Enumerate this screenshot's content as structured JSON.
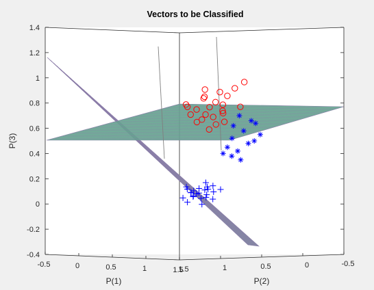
{
  "colors": {
    "figure_bg": "#f0f0f0",
    "axes_bg": "#ffffff",
    "axis_line": "#262626",
    "class_circle": "#ff0000",
    "class_plus": "#0000ff",
    "class_star": "#0000ff",
    "plane_fill": "#5fa98c",
    "plane_grid": "#8d7eaa",
    "stem": "#7f7f7f"
  },
  "chart_data": {
    "type": "scatter3d",
    "title": "Vectors to be Classified",
    "xlabel": "P(1)",
    "ylabel": "P(2)",
    "zlabel": "P(3)",
    "xlim": [
      -0.5,
      1.5
    ],
    "ylim": [
      -0.5,
      1.5
    ],
    "zlim": [
      -0.4,
      1.4
    ],
    "x_ticks": [
      "-0.5",
      "0",
      "0.5",
      "1",
      "1.5"
    ],
    "y_ticks": [
      "1.5",
      "1",
      "0.5",
      "0",
      "-0.5"
    ],
    "z_ticks": [
      "-0.4",
      "-0.2",
      "0",
      "0.2",
      "0.4",
      "0.6",
      "0.8",
      "1",
      "1.2",
      "1.4"
    ],
    "grid": false,
    "series": [
      {
        "marker": "o",
        "color": "#ff0000",
        "points": [
          [
            1.1,
            0.5,
            0.93
          ],
          [
            1.18,
            0.45,
            0.98
          ],
          [
            1.05,
            0.55,
            0.87
          ],
          [
            1.0,
            0.6,
            0.9
          ],
          [
            0.96,
            0.62,
            0.82
          ],
          [
            1.02,
            0.58,
            0.8
          ],
          [
            0.88,
            0.7,
            0.85
          ],
          [
            0.92,
            0.66,
            0.78
          ],
          [
            0.98,
            0.55,
            0.75
          ],
          [
            0.86,
            0.66,
            0.72
          ],
          [
            0.9,
            0.6,
            0.7
          ],
          [
            0.83,
            0.68,
            0.68
          ],
          [
            0.95,
            0.52,
            0.73
          ],
          [
            0.8,
            0.72,
            0.76
          ],
          [
            0.78,
            0.7,
            0.66
          ],
          [
            0.88,
            0.55,
            0.64
          ],
          [
            0.76,
            0.76,
            0.72
          ],
          [
            0.84,
            0.6,
            0.6
          ],
          [
            0.92,
            0.48,
            0.66
          ],
          [
            1.06,
            0.4,
            0.78
          ],
          [
            0.74,
            0.8,
            0.8
          ],
          [
            0.82,
            0.64,
            0.86
          ],
          [
            0.7,
            0.75,
            0.78
          ],
          [
            0.9,
            0.7,
            0.92
          ]
        ]
      },
      {
        "marker": "+",
        "color": "#0000ff",
        "points": [
          [
            0.1,
            0.12,
            0.07
          ],
          [
            0.15,
            0.05,
            0.1
          ],
          [
            0.05,
            0.15,
            0.04
          ],
          [
            0.2,
            0.1,
            0.12
          ],
          [
            0.12,
            0.2,
            0.09
          ],
          [
            0.02,
            0.08,
            0.06
          ],
          [
            0.18,
            0.16,
            0.03
          ],
          [
            0.08,
            0.02,
            0.15
          ],
          [
            0.22,
            0.04,
            0.08
          ],
          [
            0.0,
            0.18,
            0.1
          ],
          [
            0.14,
            0.22,
            0.05
          ],
          [
            0.24,
            0.14,
            0.06
          ],
          [
            0.06,
            0.24,
            0.12
          ],
          [
            0.16,
            0.0,
            0.02
          ],
          [
            0.26,
            0.08,
            0.13
          ],
          [
            0.1,
            0.26,
            0.0
          ],
          [
            -0.02,
            0.12,
            0.07
          ],
          [
            0.2,
            0.2,
            0.11
          ],
          [
            0.04,
            0.0,
            0.09
          ],
          [
            0.28,
            0.18,
            0.04
          ],
          [
            0.12,
            0.1,
            -0.02
          ],
          [
            0.3,
            0.02,
            0.1
          ],
          [
            -0.04,
            0.2,
            0.03
          ],
          [
            0.18,
            0.28,
            0.08
          ]
        ]
      },
      {
        "marker": "*",
        "color": "#0000ff",
        "points": [
          [
            0.8,
            0.2,
            0.7
          ],
          [
            0.88,
            0.12,
            0.66
          ],
          [
            0.76,
            0.24,
            0.62
          ],
          [
            0.92,
            0.1,
            0.64
          ],
          [
            0.84,
            0.18,
            0.58
          ],
          [
            0.72,
            0.28,
            0.45
          ],
          [
            0.8,
            0.22,
            0.42
          ],
          [
            0.86,
            0.14,
            0.48
          ],
          [
            0.76,
            0.26,
            0.38
          ],
          [
            0.9,
            0.1,
            0.5
          ],
          [
            0.68,
            0.3,
            0.4
          ],
          [
            0.82,
            0.2,
            0.35
          ],
          [
            0.94,
            0.06,
            0.55
          ],
          [
            0.74,
            0.24,
            0.52
          ]
        ]
      }
    ]
  }
}
